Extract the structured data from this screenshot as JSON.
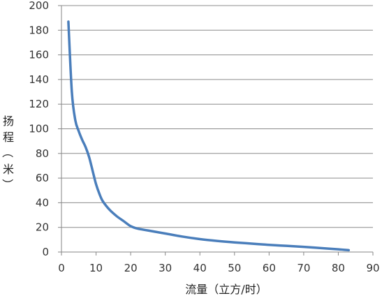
{
  "chart_data": {
    "type": "line",
    "title": "",
    "xlabel": "流量（立方/时）",
    "ylabel": "扬程（米）",
    "xlim": [
      0,
      90
    ],
    "ylim": [
      0,
      200
    ],
    "xticks": [
      "0",
      "10",
      "20",
      "30",
      "40",
      "50",
      "60",
      "70",
      "80",
      "90"
    ],
    "yticks": [
      "0",
      "20",
      "40",
      "60",
      "80",
      "100",
      "120",
      "140",
      "160",
      "180",
      "200"
    ],
    "grid": "horizontal",
    "legend": "none",
    "series": [
      {
        "color": "#4a7ebb",
        "x": [
          2,
          3,
          4,
          5,
          6,
          7,
          8,
          9,
          10,
          11,
          12,
          14,
          16,
          18,
          20,
          22,
          25,
          30,
          35,
          40,
          45,
          50,
          55,
          60,
          65,
          70,
          75,
          80,
          83
        ],
        "y": [
          187,
          130,
          107,
          98,
          91,
          85,
          77,
          66,
          55,
          47,
          41,
          34,
          29,
          25,
          21,
          19,
          17.5,
          15,
          12.5,
          10.5,
          9,
          7.8,
          6.8,
          5.8,
          5,
          4.2,
          3.2,
          2.2,
          1.5
        ]
      }
    ]
  }
}
